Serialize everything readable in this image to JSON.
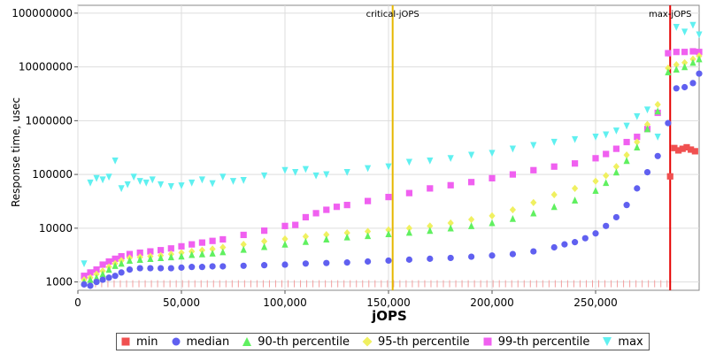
{
  "chart_data": {
    "type": "scatter",
    "xlabel": "jOPS",
    "ylabel": "Response time, usec",
    "xlim": [
      0,
      300000
    ],
    "ylim": [
      700,
      140000000
    ],
    "yscale": "log",
    "x_ticks": [
      0,
      50000,
      100000,
      150000,
      200000,
      250000
    ],
    "x_tick_labels": [
      "0",
      "50,000",
      "100,000",
      "150,000",
      "200,000",
      "250,000"
    ],
    "y_ticks": [
      1000,
      10000,
      100000,
      1000000,
      10000000,
      100000000
    ],
    "y_tick_labels": [
      "1000",
      "10000",
      "100000",
      "1000000",
      "10000000",
      "100000000"
    ],
    "grid": true,
    "legend_position": "bottom",
    "markers": [
      {
        "label": "critical-jOPS",
        "x": 152000,
        "color": "#e6b800"
      },
      {
        "label": "max-jOPS",
        "x": 286000,
        "color": "#e60000"
      }
    ],
    "series": [
      {
        "name": "min",
        "color": "#f05050",
        "shape": "square",
        "x": [
          286000,
          288000,
          290000,
          292000,
          294000,
          296000,
          298000
        ],
        "y": [
          92000,
          310000,
          280000,
          300000,
          320000,
          290000,
          270000
        ]
      },
      {
        "name": "median",
        "color": "#6060f0",
        "shape": "circle",
        "x": [
          3000,
          6000,
          9000,
          12000,
          15000,
          18000,
          21000,
          25000,
          30000,
          35000,
          40000,
          45000,
          50000,
          55000,
          60000,
          65000,
          70000,
          80000,
          90000,
          100000,
          110000,
          120000,
          130000,
          140000,
          150000,
          160000,
          170000,
          180000,
          190000,
          200000,
          210000,
          220000,
          230000,
          235000,
          240000,
          245000,
          250000,
          255000,
          260000,
          265000,
          270000,
          275000,
          280000,
          285000,
          289000,
          293000,
          297000,
          300000
        ],
        "y": [
          900,
          850,
          1000,
          1100,
          1200,
          1300,
          1500,
          1700,
          1800,
          1800,
          1800,
          1800,
          1850,
          1900,
          1900,
          1950,
          1950,
          2000,
          2050,
          2100,
          2200,
          2250,
          2300,
          2400,
          2500,
          2600,
          2700,
          2800,
          2950,
          3100,
          3300,
          3700,
          4400,
          5000,
          5500,
          6500,
          8000,
          11000,
          16000,
          27000,
          55000,
          110000,
          220000,
          900000,
          4000000,
          4200000,
          5000000,
          7500000
        ]
      },
      {
        "name": "90-th percentile",
        "color": "#60f060",
        "shape": "triangle-up",
        "x": [
          3000,
          6000,
          9000,
          12000,
          15000,
          18000,
          21000,
          25000,
          30000,
          35000,
          40000,
          45000,
          50000,
          55000,
          60000,
          65000,
          70000,
          80000,
          90000,
          100000,
          110000,
          120000,
          130000,
          140000,
          150000,
          160000,
          170000,
          180000,
          190000,
          200000,
          210000,
          220000,
          230000,
          240000,
          250000,
          255000,
          260000,
          265000,
          270000,
          275000,
          280000,
          285000,
          289000,
          293000,
          297000,
          300000
        ],
        "y": [
          1000,
          1100,
          1200,
          1400,
          1700,
          2000,
          2200,
          2500,
          2600,
          2700,
          2800,
          2900,
          3000,
          3200,
          3300,
          3400,
          3600,
          4000,
          4500,
          5000,
          5600,
          6200,
          6800,
          7200,
          7800,
          8300,
          9000,
          10000,
          11000,
          12500,
          15000,
          19000,
          25000,
          33000,
          50000,
          70000,
          110000,
          180000,
          320000,
          700000,
          1500000,
          8000000,
          9000000,
          10000000,
          12000000,
          14000000
        ]
      },
      {
        "name": "95-th percentile",
        "color": "#f0f060",
        "shape": "diamond",
        "x": [
          3000,
          6000,
          9000,
          12000,
          15000,
          18000,
          21000,
          25000,
          30000,
          35000,
          40000,
          45000,
          50000,
          55000,
          60000,
          65000,
          70000,
          80000,
          90000,
          100000,
          110000,
          120000,
          130000,
          140000,
          150000,
          160000,
          170000,
          180000,
          190000,
          200000,
          210000,
          220000,
          230000,
          240000,
          250000,
          255000,
          260000,
          265000,
          270000,
          275000,
          280000,
          285000,
          289000,
          293000,
          297000,
          300000
        ],
        "y": [
          1100,
          1200,
          1400,
          1600,
          1900,
          2200,
          2500,
          2800,
          2900,
          3000,
          3100,
          3300,
          3500,
          3700,
          3900,
          4100,
          4400,
          5000,
          5700,
          6300,
          7000,
          7600,
          8200,
          8700,
          9300,
          10000,
          11000,
          12500,
          14500,
          17000,
          22000,
          30000,
          42000,
          55000,
          75000,
          95000,
          140000,
          230000,
          400000,
          850000,
          2000000,
          9500000,
          11000000,
          12000000,
          14000000,
          16000000
        ]
      },
      {
        "name": "99-th percentile",
        "color": "#f060f0",
        "shape": "square",
        "x": [
          3000,
          6000,
          9000,
          12000,
          15000,
          18000,
          21000,
          25000,
          30000,
          35000,
          40000,
          45000,
          50000,
          55000,
          60000,
          65000,
          70000,
          80000,
          90000,
          100000,
          105000,
          110000,
          115000,
          120000,
          125000,
          130000,
          140000,
          150000,
          160000,
          170000,
          180000,
          190000,
          200000,
          210000,
          220000,
          230000,
          240000,
          250000,
          255000,
          260000,
          265000,
          270000,
          275000,
          280000,
          285000,
          289000,
          293000,
          297000,
          300000
        ],
        "y": [
          1300,
          1500,
          1700,
          2100,
          2400,
          2700,
          3000,
          3300,
          3500,
          3700,
          3900,
          4200,
          4600,
          5000,
          5400,
          5800,
          6200,
          7500,
          9000,
          11000,
          11500,
          16000,
          19000,
          22000,
          25000,
          27000,
          32000,
          38000,
          45000,
          55000,
          63000,
          72000,
          85000,
          100000,
          120000,
          140000,
          160000,
          200000,
          240000,
          300000,
          400000,
          500000,
          700000,
          1400000,
          18000000,
          19000000,
          19000000,
          19500000,
          19000000
        ]
      },
      {
        "name": "max",
        "color": "#60f0f0",
        "shape": "triangle-down",
        "x": [
          3000,
          6000,
          9000,
          12000,
          15000,
          18000,
          21000,
          24000,
          27000,
          30000,
          33000,
          36000,
          40000,
          45000,
          50000,
          55000,
          60000,
          65000,
          70000,
          75000,
          80000,
          90000,
          100000,
          105000,
          110000,
          115000,
          120000,
          130000,
          140000,
          150000,
          160000,
          170000,
          180000,
          190000,
          200000,
          210000,
          220000,
          230000,
          240000,
          250000,
          255000,
          260000,
          265000,
          270000,
          275000,
          280000,
          285000,
          289000,
          293000,
          297000,
          300000
        ],
        "y": [
          2200,
          70000,
          85000,
          80000,
          90000,
          180000,
          55000,
          65000,
          90000,
          75000,
          70000,
          80000,
          65000,
          60000,
          62000,
          70000,
          80000,
          68000,
          90000,
          75000,
          78000,
          95000,
          120000,
          110000,
          125000,
          95000,
          100000,
          110000,
          130000,
          140000,
          170000,
          180000,
          200000,
          230000,
          250000,
          300000,
          350000,
          400000,
          450000,
          500000,
          550000,
          650000,
          800000,
          1200000,
          1600000,
          500000,
          18000000,
          55000000,
          45000000,
          60000000,
          40000000
        ]
      }
    ]
  }
}
